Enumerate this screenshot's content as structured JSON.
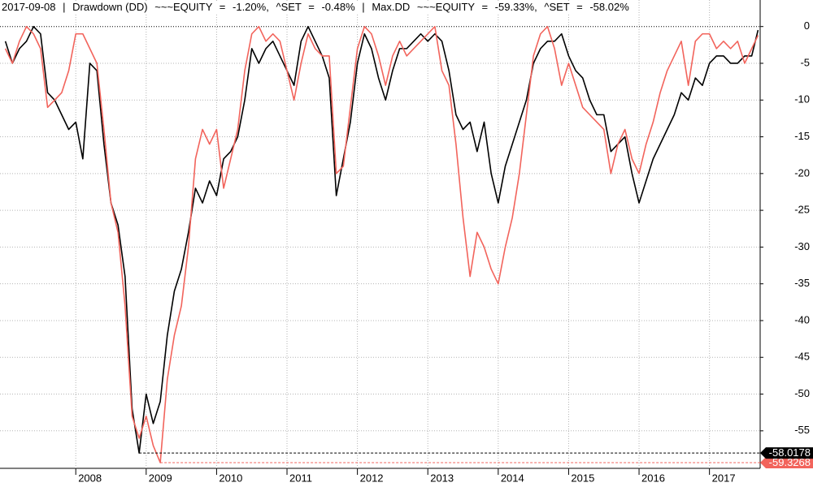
{
  "chart_data": {
    "type": "line",
    "header": {
      "date": "2017-09-08",
      "divider": "|",
      "indicator": "Drawdown (DD)",
      "max_label": "Max.DD",
      "equals": "=",
      "comma": ","
    },
    "x": [
      2007,
      2007.1,
      2007.2,
      2007.3,
      2007.4,
      2007.5,
      2007.6,
      2007.7,
      2007.8,
      2007.9,
      2008,
      2008.1,
      2008.2,
      2008.3,
      2008.4,
      2008.5,
      2008.6,
      2008.7,
      2008.8,
      2008.9,
      2009,
      2009.1,
      2009.2,
      2009.3,
      2009.4,
      2009.5,
      2009.6,
      2009.7,
      2009.8,
      2009.9,
      2010,
      2010.1,
      2010.2,
      2010.3,
      2010.4,
      2010.5,
      2010.6,
      2010.7,
      2010.8,
      2010.9,
      2011,
      2011.1,
      2011.2,
      2011.3,
      2011.4,
      2011.5,
      2011.6,
      2011.7,
      2011.8,
      2011.9,
      2012,
      2012.1,
      2012.2,
      2012.3,
      2012.4,
      2012.5,
      2012.6,
      2012.7,
      2012.8,
      2012.9,
      2013,
      2013.1,
      2013.2,
      2013.3,
      2013.4,
      2013.5,
      2013.6,
      2013.7,
      2013.8,
      2013.9,
      2014,
      2014.1,
      2014.2,
      2014.3,
      2014.4,
      2014.5,
      2014.6,
      2014.7,
      2014.8,
      2014.9,
      2015,
      2015.1,
      2015.2,
      2015.3,
      2015.4,
      2015.5,
      2015.6,
      2015.7,
      2015.8,
      2015.9,
      2016,
      2016.1,
      2016.2,
      2016.3,
      2016.4,
      2016.5,
      2016.6,
      2016.7,
      2016.8,
      2016.9,
      2017,
      2017.1,
      2017.2,
      2017.3,
      2017.4,
      2017.5,
      2017.6,
      2017.69
    ],
    "series": [
      {
        "name": "~~~EQUITY",
        "color": "#f2645c",
        "last_label": "-1.20%",
        "max_dd": -59.3268,
        "max_dd_label": "-59.33%",
        "values": [
          -3,
          -5,
          -2,
          0,
          -1,
          -3,
          -11,
          -10,
          -9,
          -6,
          -1,
          -1,
          -3,
          -5,
          -14,
          -24,
          -28,
          -38,
          -53,
          -56,
          -53,
          -57,
          -59.3268,
          -48,
          -42,
          -38,
          -30,
          -18,
          -14,
          -16,
          -14,
          -22,
          -18,
          -14,
          -6,
          -1,
          0,
          -2,
          -1,
          -2,
          -6,
          -10,
          -5,
          -1,
          -3,
          -4,
          -4,
          -20,
          -19,
          -11,
          -3,
          0,
          -1,
          -4,
          -8,
          -4,
          -2,
          -4,
          -3,
          -2,
          -1,
          0,
          -6,
          -8,
          -16,
          -26,
          -34,
          -28,
          -30,
          -33,
          -35,
          -30,
          -26,
          -20,
          -12,
          -4,
          -1,
          0,
          -3,
          -8,
          -5,
          -8,
          -11,
          -12,
          -13,
          -14,
          -20,
          -16,
          -14,
          -18,
          -20,
          -16,
          -13,
          -9,
          -6,
          -4,
          -2,
          -8,
          -2,
          -1,
          -1,
          -3,
          -2,
          -3,
          -2,
          -5,
          -3,
          -1.2
        ]
      },
      {
        "name": "^SET",
        "color": "#000000",
        "last_label": "-0.48%",
        "max_dd": -58.0178,
        "max_dd_label": "-58.02%",
        "values": [
          -2,
          -5,
          -3,
          -2,
          0,
          -1,
          -9,
          -10,
          -12,
          -14,
          -13,
          -18,
          -5,
          -6,
          -16,
          -24,
          -27,
          -34,
          -52,
          -58.0178,
          -50,
          -54,
          -51,
          -42,
          -36,
          -33,
          -28,
          -22,
          -24,
          -21,
          -23,
          -18,
          -17,
          -15,
          -10,
          -3,
          -5,
          -3,
          -2,
          -4,
          -6,
          -8,
          -2,
          0,
          -2,
          -4,
          -7,
          -23,
          -18,
          -13,
          -5,
          -1,
          -3,
          -7,
          -10,
          -6,
          -3,
          -3,
          -2,
          -1,
          -2,
          -1,
          -2,
          -6,
          -12,
          -14,
          -13,
          -17,
          -13,
          -20,
          -24,
          -19,
          -16,
          -13,
          -10,
          -5,
          -3,
          -2,
          -2,
          -1,
          -4,
          -6,
          -7,
          -10,
          -12,
          -12,
          -17,
          -16,
          -15,
          -20,
          -24,
          -21,
          -18,
          -16,
          -14,
          -12,
          -9,
          -10,
          -7,
          -8,
          -5,
          -4,
          -4,
          -5,
          -5,
          -4,
          -4,
          -0.48
        ]
      }
    ],
    "xlim": [
      2006.97,
      2017.72
    ],
    "xticks": [
      2008,
      2009,
      2010,
      2011,
      2012,
      2013,
      2014,
      2015,
      2016,
      2017
    ],
    "ylim": [
      -60.1,
      3.5
    ],
    "yticks": [
      0,
      -5,
      -10,
      -15,
      -20,
      -25,
      -30,
      -35,
      -40,
      -45,
      -50,
      -55
    ],
    "grid": true
  }
}
